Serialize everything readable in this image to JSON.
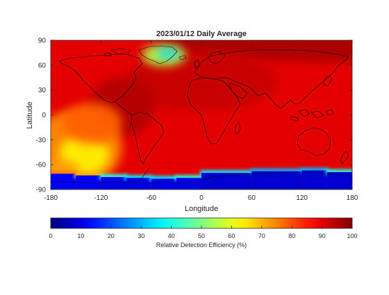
{
  "chart_data": [
    {
      "type": "heatmap",
      "title": "2023/01/12 Daily Average",
      "xlabel": "Longitude",
      "ylabel": "Latitude",
      "xlim": [
        -180,
        180
      ],
      "ylim": [
        -90,
        90
      ],
      "x_ticks": [
        -180,
        -120,
        -60,
        0,
        60,
        120,
        180
      ],
      "y_ticks": [
        90,
        60,
        30,
        0,
        -30,
        -60,
        -90
      ],
      "background_value": 90,
      "regions": [
        {
          "lon": 180,
          "lat": 90,
          "rx": 240,
          "ry": 26,
          "value": 96
        },
        {
          "lon": 0,
          "lat": 40,
          "rx": 90,
          "ry": 35,
          "value": 93
        },
        {
          "lon": -95,
          "lat": 10,
          "rx": 40,
          "ry": 35,
          "value": 95
        },
        {
          "lon": -150,
          "lat": -40,
          "rx": 55,
          "ry": 45,
          "value": 74
        },
        {
          "lon": -140,
          "lat": -48,
          "rx": 30,
          "ry": 25,
          "value": 64
        },
        {
          "lon": -130,
          "lat": -10,
          "rx": 35,
          "ry": 25,
          "value": 78
        },
        {
          "lon": -170,
          "lat": -65,
          "rx": 25,
          "ry": 10,
          "value": 72
        },
        {
          "lon": -45,
          "lat": 72,
          "rx": 26,
          "ry": 13,
          "value": 55
        },
        {
          "lon": -40,
          "lat": 74,
          "rx": 13,
          "ry": 6,
          "value": 33
        }
      ],
      "antarctic_band": [
        {
          "lon": [
            -180,
            -150
          ],
          "lat": -71,
          "edge_value": 75,
          "core_value": 12
        },
        {
          "lon": [
            -150,
            -120
          ],
          "lat": -73,
          "edge_value": 70,
          "core_value": 12
        },
        {
          "lon": [
            -120,
            -90
          ],
          "lat": -75,
          "edge_value": 40,
          "core_value": 10
        },
        {
          "lon": [
            -90,
            -60
          ],
          "lat": -76,
          "edge_value": 35,
          "core_value": 10
        },
        {
          "lon": [
            -60,
            -30
          ],
          "lat": -77,
          "edge_value": 35,
          "core_value": 10
        },
        {
          "lon": [
            -30,
            0
          ],
          "lat": -76,
          "edge_value": 40,
          "core_value": 10
        },
        {
          "lon": [
            0,
            60
          ],
          "lat": -70,
          "edge_value": 35,
          "core_value": 8
        },
        {
          "lon": [
            60,
            120
          ],
          "lat": -68,
          "edge_value": 30,
          "core_value": 8
        },
        {
          "lon": [
            120,
            150
          ],
          "lat": -67,
          "edge_value": 30,
          "core_value": 8
        },
        {
          "lon": [
            150,
            180
          ],
          "lat": -69,
          "edge_value": 40,
          "core_value": 8
        }
      ]
    },
    {
      "type": "colorbar",
      "label": "Relative Detection Efficiency (%)",
      "range": [
        0,
        100
      ],
      "ticks": [
        0,
        10,
        20,
        30,
        40,
        50,
        60,
        70,
        80,
        90,
        100
      ],
      "colormap": "jet"
    }
  ]
}
